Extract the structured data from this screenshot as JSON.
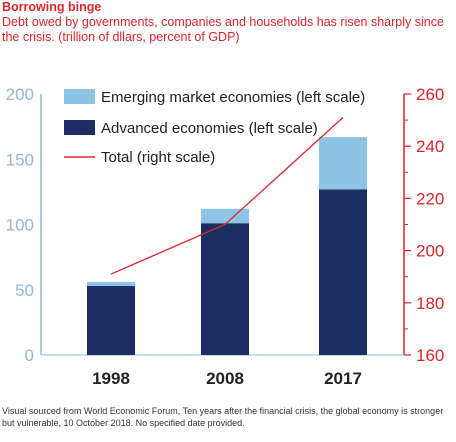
{
  "title": "Borrowing binge",
  "subtitle": "Debt owed by governments, companies and households has risen sharply since the crisis. (trillion of dllars, percent of GDP)",
  "footnote": "Visual sourced from World Economic Forum, Ten years after the financial crisis, the global economy is stronger but vulnerable, 10 October 2018. No specified date provided.",
  "colors": {
    "emerging": "#8ec5e6",
    "advanced": "#1b2f63",
    "total": "#d9262b",
    "left_axis": "#8fb8d6",
    "right_axis": "#d9262b"
  },
  "chart_data": {
    "type": "bar",
    "stacked": true,
    "categories": [
      "1998",
      "2008",
      "2017"
    ],
    "series": [
      {
        "name": "Advanced economies (left scale)",
        "values": [
          53,
          101,
          127
        ],
        "axis": "left"
      },
      {
        "name": "Emerging market economies (left scale)",
        "values": [
          3,
          11,
          40
        ],
        "axis": "left"
      }
    ],
    "line_series": [
      {
        "name": "Total (right scale)",
        "values": [
          191,
          210,
          251
        ],
        "axis": "right"
      }
    ],
    "ylim_left": [
      0,
      200
    ],
    "yticks_left": [
      "0",
      "50",
      "100",
      "150",
      "200"
    ],
    "ylim_right": [
      160,
      260
    ],
    "yticks_right": [
      "160",
      "180",
      "200",
      "220",
      "240",
      "260"
    ],
    "legend_position": "top-left",
    "grid": false
  }
}
